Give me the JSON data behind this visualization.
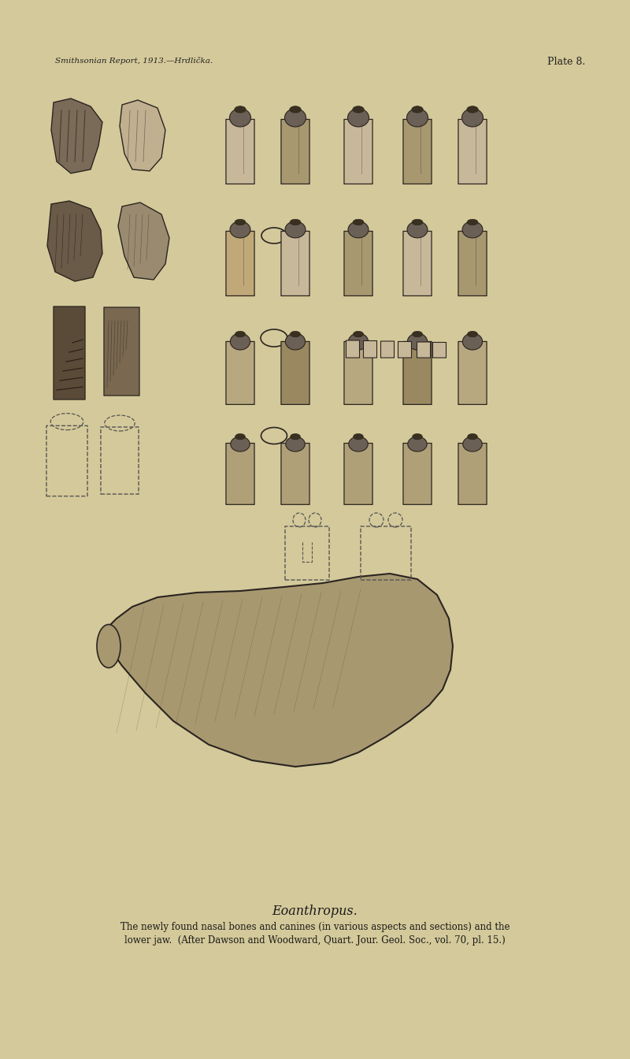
{
  "bg_color": "#d4c99a",
  "title_text": "Eoanthropus.",
  "caption_line1": "The newly found nasal bones and canines (in various aspects and sections) and the",
  "caption_line2": "lower jaw.  (After Dawson and Woodward, Quart. Jour. Geol. Soc., vol. 70, pl. 15.)",
  "plate_text": "Plate 8.",
  "header_text": "Smithsonian Report, 1913.—Hrdlička.",
  "fig_width": 8.0,
  "fig_height": 13.44,
  "title_fontsize": 11.5,
  "caption_fontsize": 8.5,
  "plate_fontsize": 9,
  "header_fontsize": 7.5
}
